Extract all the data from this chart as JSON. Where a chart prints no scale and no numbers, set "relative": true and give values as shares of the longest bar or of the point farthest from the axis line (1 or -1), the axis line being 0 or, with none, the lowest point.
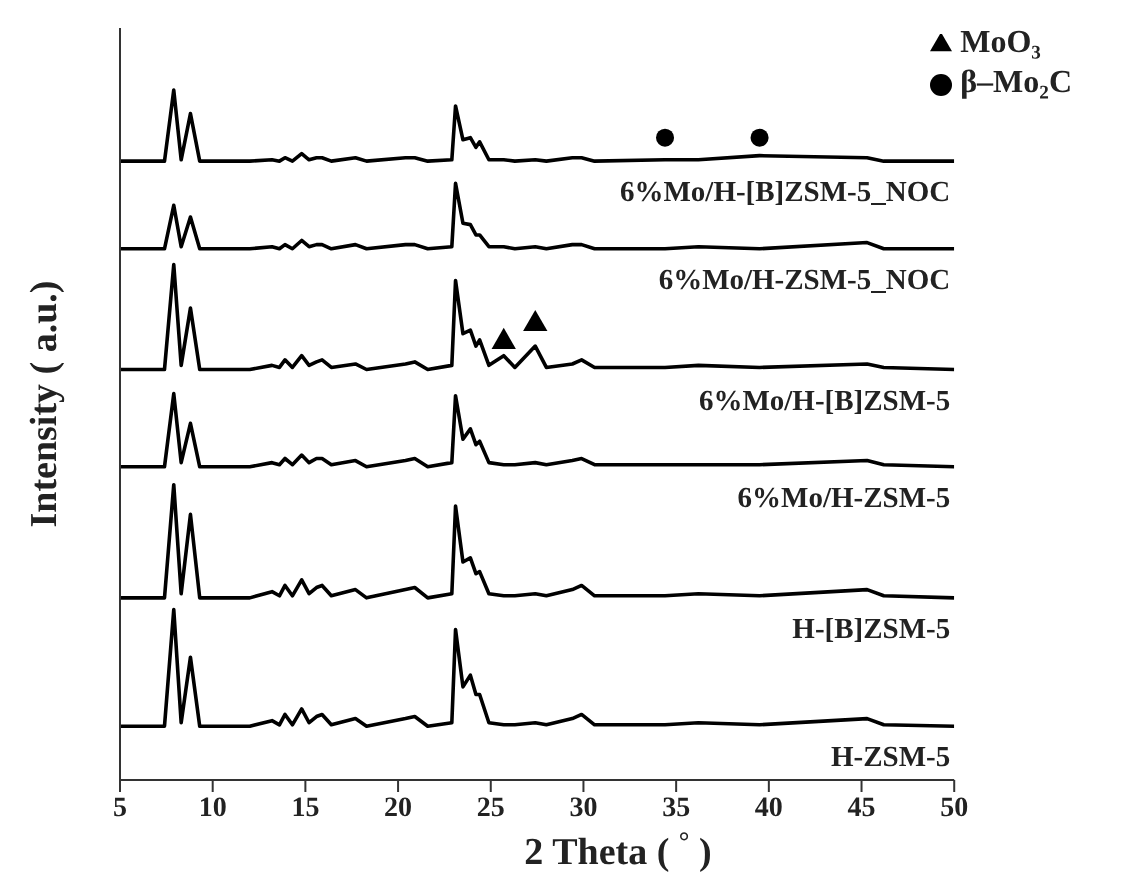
{
  "chart_data": {
    "type": "line",
    "relative": true,
    "xlabel": "2 Theta ( $^{°}$ )",
    "ylabel": "Intensity ( a.u.)",
    "xlim": [
      5,
      50
    ],
    "xticks": [
      5,
      10,
      15,
      20,
      25,
      30,
      35,
      40,
      45,
      50
    ],
    "legend": "top right",
    "line_style": "solid",
    "x": [
      5,
      7.4,
      7.9,
      8.3,
      8.8,
      9.3,
      12,
      13.2,
      13.6,
      13.9,
      14.3,
      14.8,
      15.2,
      15.6,
      15.9,
      16.4,
      17.7,
      18.3,
      20.4,
      20.9,
      21.6,
      22.9,
      23.1,
      23.5,
      23.9,
      24.2,
      24.4,
      24.9,
      25.7,
      26.3,
      27.4,
      28,
      29.4,
      29.9,
      30.6,
      34.4,
      36.2,
      39.5,
      45.3,
      46.2,
      50
    ],
    "series": [
      {
        "name": "H-ZSM-5",
        "color": "#000000",
        "values": [
          0.078,
          0.078,
          0.247,
          0.083,
          0.178,
          0.078,
          0.078,
          0.086,
          0.08,
          0.095,
          0.08,
          0.103,
          0.083,
          0.092,
          0.095,
          0.08,
          0.089,
          0.078,
          0.089,
          0.092,
          0.078,
          0.083,
          0.218,
          0.135,
          0.152,
          0.124,
          0.124,
          0.083,
          0.08,
          0.08,
          0.083,
          0.08,
          0.089,
          0.095,
          0.08,
          0.08,
          0.083,
          0.08,
          0.089,
          0.08,
          0.078
        ]
      },
      {
        "name": "H-[B]ZSM-5",
        "color": "#000000",
        "values": [
          0.264,
          0.264,
          0.428,
          0.27,
          0.385,
          0.264,
          0.264,
          0.273,
          0.267,
          0.282,
          0.267,
          0.29,
          0.27,
          0.279,
          0.282,
          0.267,
          0.276,
          0.264,
          0.276,
          0.279,
          0.264,
          0.27,
          0.397,
          0.316,
          0.322,
          0.299,
          0.302,
          0.27,
          0.267,
          0.267,
          0.27,
          0.267,
          0.276,
          0.282,
          0.267,
          0.267,
          0.27,
          0.267,
          0.276,
          0.267,
          0.264
        ]
      },
      {
        "name": "6%Mo/H-ZSM-5",
        "color": "#000000",
        "values": [
          0.454,
          0.454,
          0.56,
          0.46,
          0.517,
          0.454,
          0.454,
          0.46,
          0.457,
          0.466,
          0.457,
          0.471,
          0.46,
          0.466,
          0.466,
          0.457,
          0.463,
          0.454,
          0.463,
          0.466,
          0.454,
          0.46,
          0.557,
          0.494,
          0.509,
          0.486,
          0.491,
          0.46,
          0.457,
          0.457,
          0.46,
          0.457,
          0.463,
          0.466,
          0.457,
          0.457,
          0.457,
          0.457,
          0.463,
          0.457,
          0.454
        ]
      },
      {
        "name": "6%Mo/H-[B]ZSM-5",
        "color": "#000000",
        "values": [
          0.595,
          0.595,
          0.747,
          0.601,
          0.684,
          0.595,
          0.595,
          0.601,
          0.598,
          0.609,
          0.598,
          0.615,
          0.601,
          0.606,
          0.609,
          0.598,
          0.603,
          0.595,
          0.603,
          0.606,
          0.595,
          0.601,
          0.724,
          0.647,
          0.652,
          0.629,
          0.638,
          0.601,
          0.615,
          0.598,
          0.629,
          0.598,
          0.603,
          0.609,
          0.598,
          0.598,
          0.601,
          0.598,
          0.603,
          0.598,
          0.595
        ]
      },
      {
        "name": "6%Mo/H-ZSM-5_NOC",
        "color": "#000000",
        "values": [
          0.77,
          0.77,
          0.833,
          0.773,
          0.816,
          0.77,
          0.77,
          0.773,
          0.77,
          0.776,
          0.77,
          0.782,
          0.773,
          0.776,
          0.776,
          0.77,
          0.776,
          0.77,
          0.776,
          0.776,
          0.77,
          0.773,
          0.865,
          0.807,
          0.805,
          0.79,
          0.79,
          0.773,
          0.773,
          0.77,
          0.773,
          0.77,
          0.776,
          0.776,
          0.77,
          0.77,
          0.773,
          0.77,
          0.779,
          0.77,
          0.77
        ]
      },
      {
        "name": "6%Mo/H-[B]ZSM-5_NOC",
        "color": "#000000",
        "values": [
          0.897,
          0.897,
          1.0,
          0.899,
          0.966,
          0.897,
          0.897,
          0.899,
          0.897,
          0.902,
          0.897,
          0.908,
          0.899,
          0.902,
          0.902,
          0.897,
          0.902,
          0.897,
          0.902,
          0.902,
          0.897,
          0.899,
          0.977,
          0.928,
          0.931,
          0.917,
          0.925,
          0.899,
          0.899,
          0.897,
          0.899,
          0.897,
          0.902,
          0.902,
          0.897,
          0.899,
          0.899,
          0.905,
          0.902,
          0.897,
          0.897
        ]
      },
      {
        "name": "MoO₃",
        "type": "scatter",
        "marker": "triangle",
        "color": "#000000",
        "x": [
          25.7,
          27.4
        ],
        "values": [
          0.635,
          0.661
        ]
      },
      {
        "name": "β–Mo₂C",
        "type": "scatter",
        "marker": "circle",
        "color": "#000000",
        "x": [
          34.4,
          39.5
        ],
        "values": [
          0.931,
          0.931
        ]
      }
    ]
  }
}
